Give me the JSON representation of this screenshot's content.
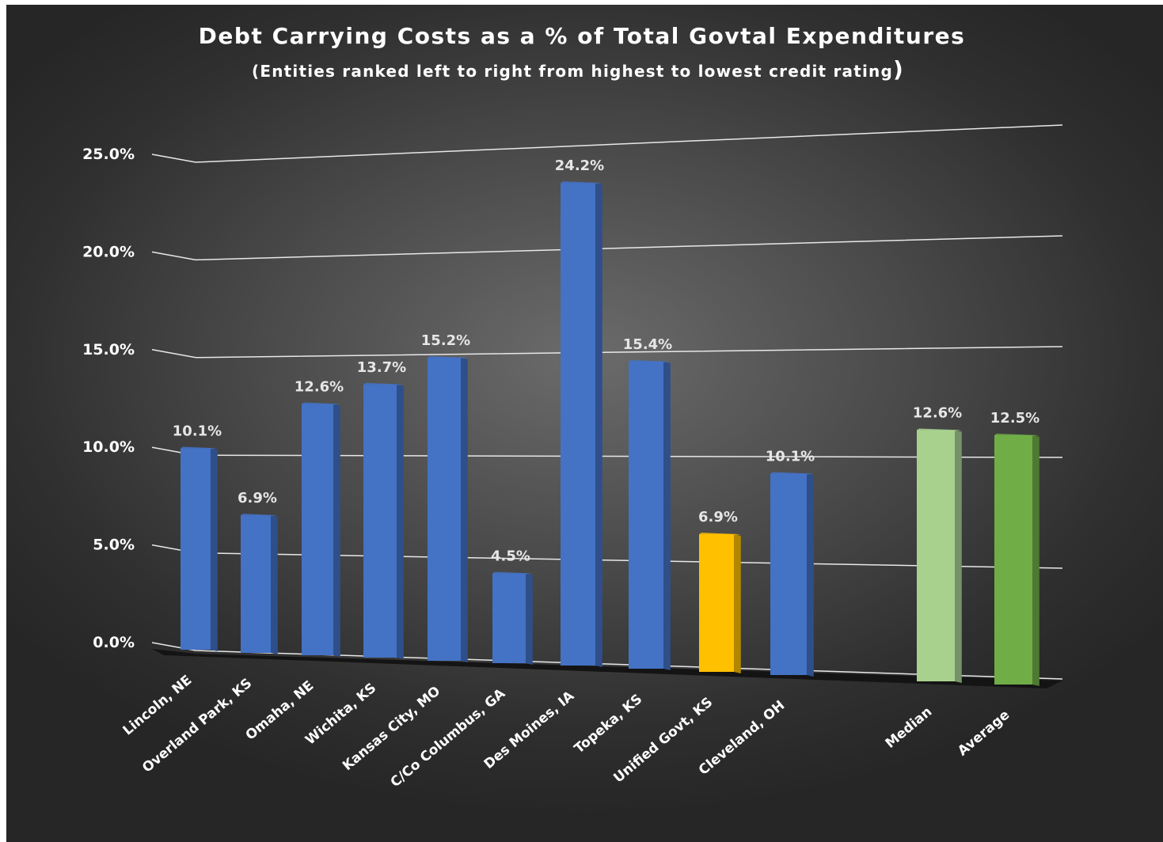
{
  "chart_data": {
    "type": "bar",
    "title": "Debt Carrying Costs as a % of Total Govtal Expenditures",
    "subtitle": "(Entities ranked left to right from highest to lowest credit rating",
    "subtitle_paren": ")",
    "xlabel": "",
    "ylabel": "",
    "ylim": [
      0,
      25
    ],
    "yticks": [
      "0.0%",
      "5.0%",
      "10.0%",
      "15.0%",
      "20.0%",
      "25.0%"
    ],
    "ytick_values": [
      0,
      5,
      10,
      15,
      20,
      25
    ],
    "grid": true,
    "categories": [
      "Lincoln, NE",
      "Overland Park, KS",
      "Omaha, NE",
      "Wichita, KS",
      "Kansas City, MO",
      "C/Co Columbus, GA",
      "Des Moines, IA",
      "Topeka, KS",
      "Unified Govt, KS",
      "Cleveland, OH",
      "Median",
      "Average"
    ],
    "values": [
      10.1,
      6.9,
      12.6,
      13.7,
      15.2,
      4.5,
      24.2,
      15.4,
      6.9,
      10.1,
      12.6,
      12.5
    ],
    "data_labels": [
      "10.1%",
      "6.9%",
      "12.6%",
      "13.7%",
      "15.2%",
      "4.5%",
      "24.2%",
      "15.4%",
      "6.9%",
      "10.1%",
      "12.6%",
      "12.5%"
    ],
    "bar_colors": [
      "#4472c4",
      "#4472c4",
      "#4472c4",
      "#4472c4",
      "#4472c4",
      "#4472c4",
      "#4472c4",
      "#4472c4",
      "#ffc000",
      "#4472c4",
      "#a9d18e",
      "#70ad47"
    ],
    "side_colors": [
      "#2f4f8a",
      "#2f4f8a",
      "#2f4f8a",
      "#2f4f8a",
      "#2f4f8a",
      "#2f4f8a",
      "#2f4f8a",
      "#2f4f8a",
      "#b38600",
      "#2f4f8a",
      "#76926a",
      "#4e7932"
    ]
  }
}
